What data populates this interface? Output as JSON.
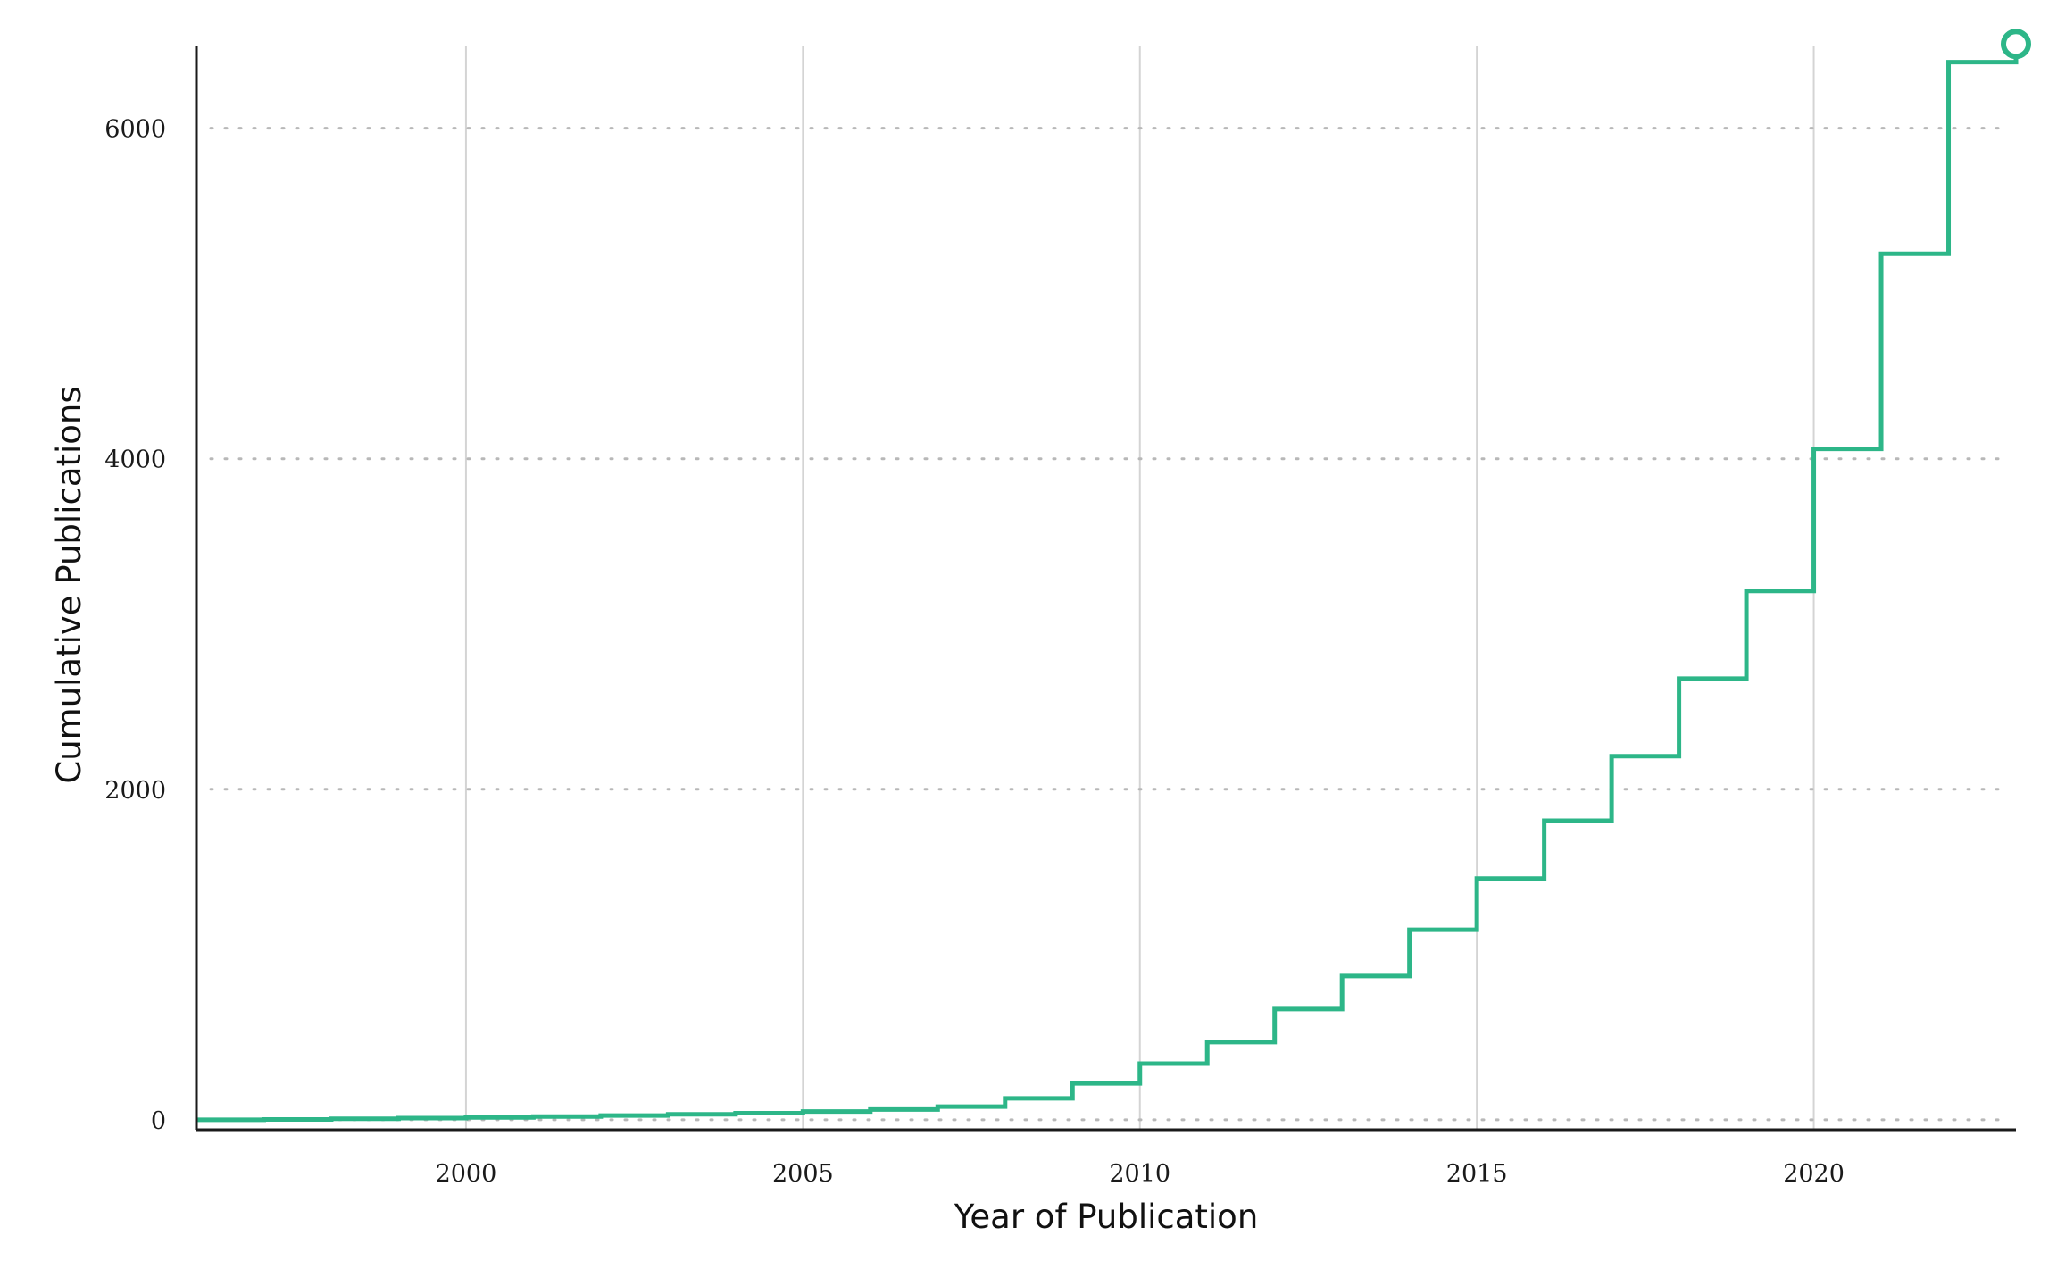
{
  "chart_data": {
    "type": "line",
    "step": true,
    "title": "",
    "xlabel": "Year of Publication",
    "ylabel": "Cumulative Publications",
    "xlim": [
      1996,
      2023
    ],
    "ylim": [
      -60,
      6560
    ],
    "x_ticks": [
      2000,
      2005,
      2010,
      2015,
      2020
    ],
    "y_ticks": [
      0,
      2000,
      4000,
      6000
    ],
    "grid": {
      "x": "solid",
      "y": "dotted"
    },
    "legend": "none",
    "line_color": "#2db688",
    "grid_color": "#d4d4d4",
    "axis_color": "#1a1a1a",
    "end_marker": "open-circle",
    "series": [
      {
        "x": [
          1996,
          1997,
          1998,
          1999,
          2000,
          2001,
          2002,
          2003,
          2004,
          2005,
          2006,
          2007,
          2008,
          2009,
          2010,
          2011,
          2012,
          2013,
          2014,
          2015,
          2016,
          2017,
          2018,
          2019,
          2020,
          2021,
          2022,
          2023
        ],
        "values": [
          0,
          2,
          6,
          10,
          14,
          20,
          26,
          33,
          40,
          50,
          62,
          80,
          130,
          220,
          340,
          470,
          670,
          870,
          1150,
          1460,
          1810,
          2200,
          2670,
          3200,
          4060,
          5240,
          6400,
          6510
        ]
      }
    ]
  }
}
